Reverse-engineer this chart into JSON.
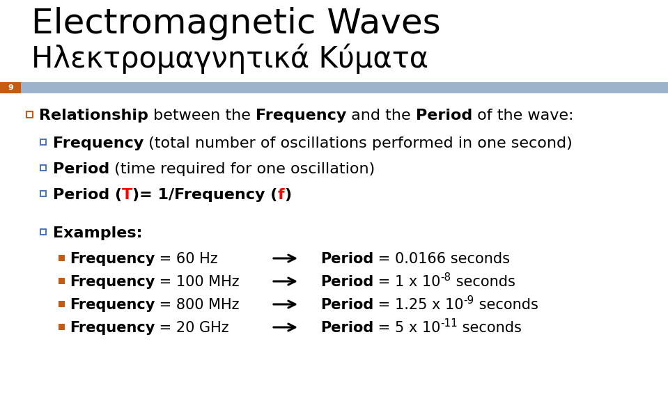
{
  "title_line1": "Electromagnetic Waves",
  "title_line2": "Ηλεκτρομαγνητικά Κύματα",
  "slide_number": "9",
  "header_bar_color": "#9db3cc",
  "slide_num_bg": "#c55a11",
  "background_color": "#ffffff",
  "bullet_orange": "#c55a11",
  "bullet_blue": "#4472c4",
  "red_color": "#ff0000",
  "text_color": "#000000",
  "title_fontsize": 36,
  "title2_fontsize": 30,
  "body_fontsize": 16,
  "small_fontsize": 15
}
